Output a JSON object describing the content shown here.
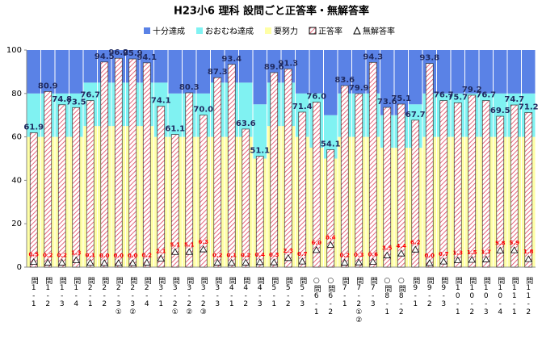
{
  "chart_data": {
    "type": "bar",
    "title": "H23小6 理科  設問ごと正答率・無解答率",
    "categories": [
      "問1-1",
      "問1-2",
      "問1-3",
      "問1-4",
      "問2-1",
      "問2-2",
      "問2-3①",
      "問2-3②",
      "問2-4",
      "問3-1",
      "問3-2①",
      "問3-2②",
      "問3-2③",
      "問3-3",
      "問4-1",
      "問4-2",
      "問4-3",
      "問5-1",
      "問5-2",
      "問5-3",
      "○問6-1",
      "○問6-2",
      "問7-1",
      "問7-2①②",
      "問7-3",
      "○問8-1",
      "○問8-2",
      "問9-1",
      "問9-2",
      "問9-3",
      "問10-1",
      "問10-2",
      "問10-3",
      "問10-4",
      "問11-1",
      "問11-2"
    ],
    "ylim": [
      0,
      100
    ],
    "yticks": [
      0,
      20,
      40,
      60,
      80,
      100
    ],
    "grid": false,
    "legend": "top",
    "series": [
      {
        "name": "十分達成",
        "color": "#5a82e6",
        "stacked": true,
        "values": [
          20,
          20,
          20,
          20,
          15,
          15,
          15,
          15,
          15,
          15,
          20,
          20,
          20,
          15,
          15,
          15,
          25,
          15,
          15,
          20,
          20,
          30,
          20,
          20,
          20,
          30,
          30,
          25,
          20,
          20,
          20,
          20,
          20,
          20,
          20,
          20
        ]
      },
      {
        "name": "おおむね達成",
        "color": "#80f2f2",
        "stacked": true,
        "values": [
          20,
          20,
          20,
          20,
          20,
          20,
          20,
          20,
          20,
          25,
          20,
          20,
          20,
          25,
          25,
          25,
          25,
          20,
          20,
          20,
          25,
          20,
          20,
          20,
          20,
          15,
          15,
          20,
          20,
          20,
          20,
          20,
          20,
          20,
          20,
          20
        ]
      },
      {
        "name": "要努力",
        "color": "#ffffa6",
        "stacked": true,
        "values": [
          60,
          60,
          60,
          60,
          65,
          65,
          65,
          65,
          65,
          60,
          60,
          60,
          60,
          60,
          60,
          60,
          50,
          65,
          65,
          60,
          55,
          50,
          60,
          60,
          60,
          55,
          55,
          55,
          60,
          60,
          60,
          60,
          60,
          60,
          60,
          60
        ]
      },
      {
        "name": "正答率",
        "color": "#e0405a",
        "pattern": "hatch",
        "values": [
          61.9,
          80.9,
          74.8,
          73.5,
          76.7,
          94.5,
          96.2,
          95.9,
          94.1,
          74.1,
          61.1,
          80.3,
          70.0,
          87.3,
          93.4,
          63.6,
          51.1,
          89.6,
          91.3,
          71.4,
          76.0,
          54.1,
          83.6,
          79.9,
          94.3,
          73.6,
          75.1,
          67.7,
          93.8,
          76.7,
          75.7,
          79.2,
          76.7,
          69.5,
          74.7,
          71.2
        ],
        "value_labels": [
          "61.9",
          "80.9",
          "74.8",
          "73.5",
          "76.7",
          "94.5",
          "96.2",
          "95.9",
          "94.1",
          "74.1",
          "61.1",
          "80.3",
          "70.0",
          "87.3",
          "93.4",
          "63.6",
          "51.1",
          "89.6",
          "91.3",
          "71.4",
          "76.0",
          "54.1",
          "83.6",
          "79.9",
          "94.3",
          "73.6",
          "75.1",
          "67.7",
          "93.8",
          "76.7",
          "75.7",
          "79.2",
          "76.7",
          "69.5",
          "74.7",
          "71.2"
        ]
      },
      {
        "name": "無解答率",
        "color": "#ff0000",
        "marker": "triangle",
        "values": [
          0.5,
          0.2,
          0.2,
          1.3,
          0.1,
          0.0,
          0.0,
          0.0,
          0.2,
          2.1,
          5.1,
          5.1,
          6.3,
          0.2,
          0.1,
          0.2,
          0.4,
          0.3,
          2.3,
          0.7,
          6.0,
          8.4,
          0.2,
          0.3,
          0.6,
          3.5,
          4.4,
          6.2,
          0.0,
          0.7,
          1.3,
          1.5,
          1.7,
          5.8,
          5.9,
          1.8
        ],
        "value_labels": [
          "0.5",
          "0.2",
          "0.2",
          "1.3",
          "0.1",
          "0.0",
          "0.0",
          "0.0",
          "0.2",
          "2.1",
          "5.1",
          "5.1",
          "6.3",
          "0.2",
          "0.1",
          "0.2",
          "0.4",
          "0.3",
          "2.3",
          "0.7",
          "6.0",
          "8.4",
          "0.2",
          "0.3",
          "0.6",
          "3.5",
          "4.4",
          "6.2",
          "0.0",
          "0.7",
          "1.3",
          "1.5",
          "1.7",
          "5.8",
          "5.9",
          "1.8"
        ]
      }
    ]
  }
}
